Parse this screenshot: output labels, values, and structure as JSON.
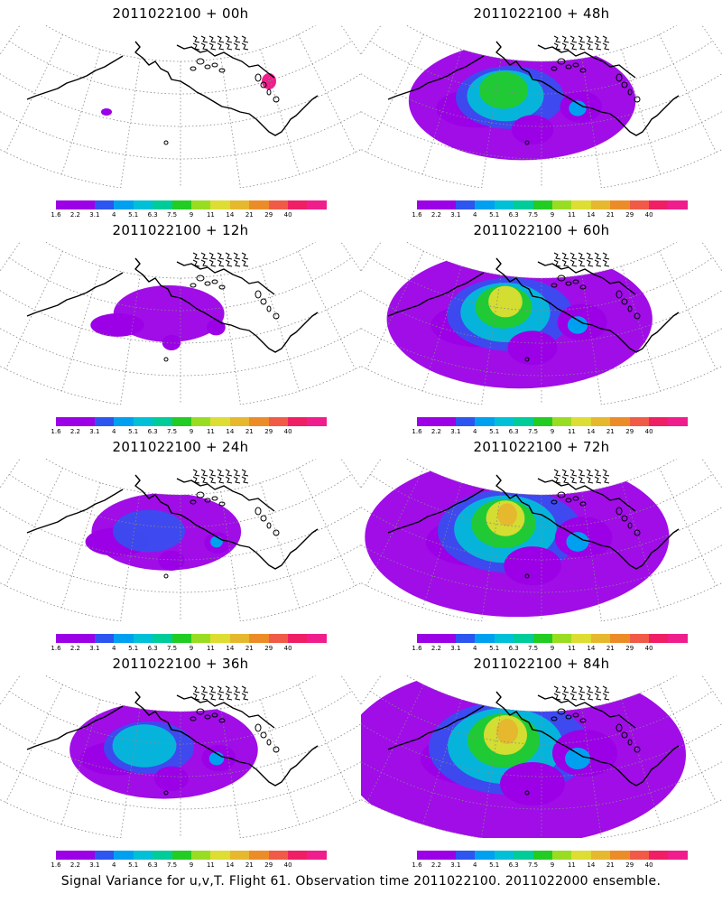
{
  "panels": [
    {
      "title": "2011022100 + 00h",
      "hours": 0
    },
    {
      "title": "2011022100 + 48h",
      "hours": 48
    },
    {
      "title": "2011022100 + 12h",
      "hours": 12
    },
    {
      "title": "2011022100 + 60h",
      "hours": 60
    },
    {
      "title": "2011022100 + 24h",
      "hours": 24
    },
    {
      "title": "2011022100 + 72h",
      "hours": 72
    },
    {
      "title": "2011022100 + 36h",
      "hours": 36
    },
    {
      "title": "2011022100 + 84h",
      "hours": 84
    }
  ],
  "colorbar": {
    "labels": [
      "1.6",
      "2.2",
      "3.1",
      "4",
      "5.1",
      "6.3",
      "7.5",
      "9",
      "11",
      "14",
      "21",
      "29",
      "40"
    ],
    "colors": [
      "#9b00e6",
      "#9b00e6",
      "#2d55f0",
      "#00a0f0",
      "#00c0d8",
      "#00cc99",
      "#22cc22",
      "#99dd22",
      "#dddd33",
      "#e6b82e",
      "#ec8c28",
      "#f05a46",
      "#f01e64",
      "#f01e8c"
    ]
  },
  "footer": "Signal Variance for u,v,T. Flight 61. Observation time 2011022100. 2011022000 ensemble."
}
